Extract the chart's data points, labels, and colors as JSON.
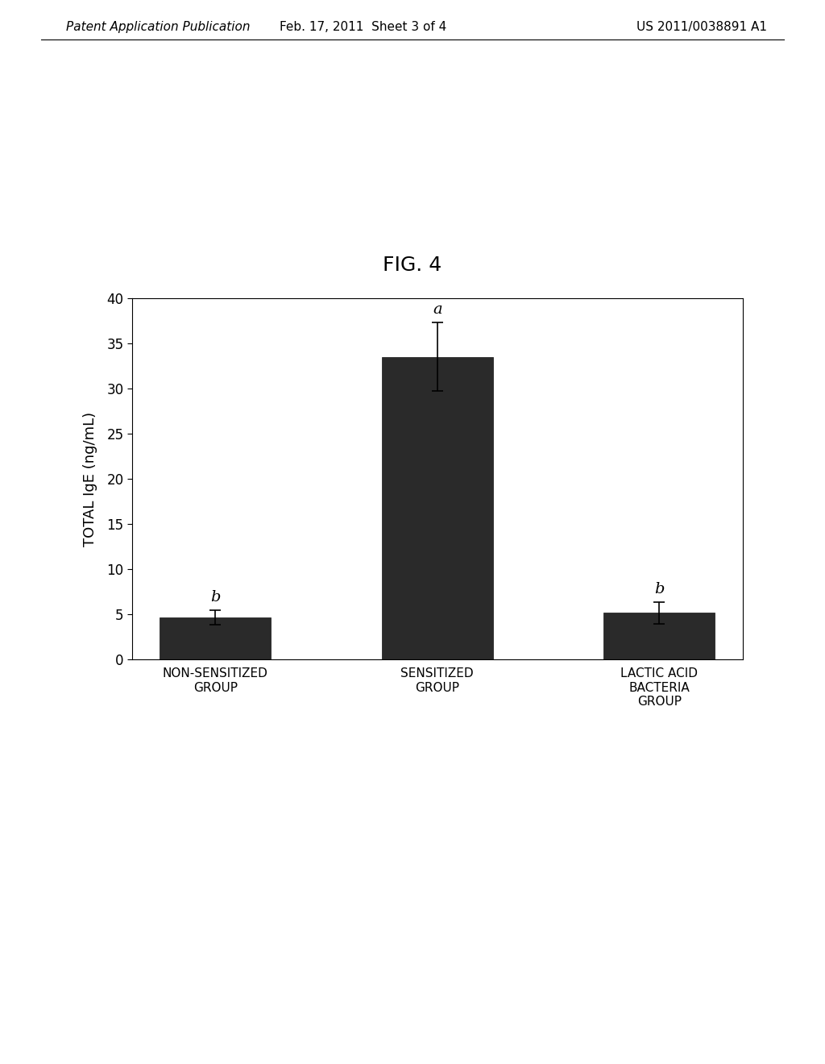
{
  "title": "FIG. 4",
  "ylabel": "TOTAL IgE (ng/mL)",
  "categories": [
    "NON-SENSITIZED\nGROUP",
    "SENSITIZED\nGROUP",
    "LACTIC ACID\nBACTERIA\nGROUP"
  ],
  "values": [
    4.7,
    33.5,
    5.2
  ],
  "errors": [
    0.8,
    3.8,
    1.2
  ],
  "labels": [
    "b",
    "a",
    "b"
  ],
  "bar_color": "#2a2a2a",
  "ylim": [
    0,
    40
  ],
  "yticks": [
    0,
    5,
    10,
    15,
    20,
    25,
    30,
    35,
    40
  ],
  "background_color": "#ffffff",
  "header_left": "Patent Application Publication",
  "header_mid": "Feb. 17, 2011  Sheet 3 of 4",
  "header_right": "US 2011/0038891 A1",
  "header_fontsize": 11,
  "title_fontsize": 18,
  "ylabel_fontsize": 13,
  "tick_fontsize": 12,
  "label_fontsize": 14,
  "xtick_fontsize": 11
}
